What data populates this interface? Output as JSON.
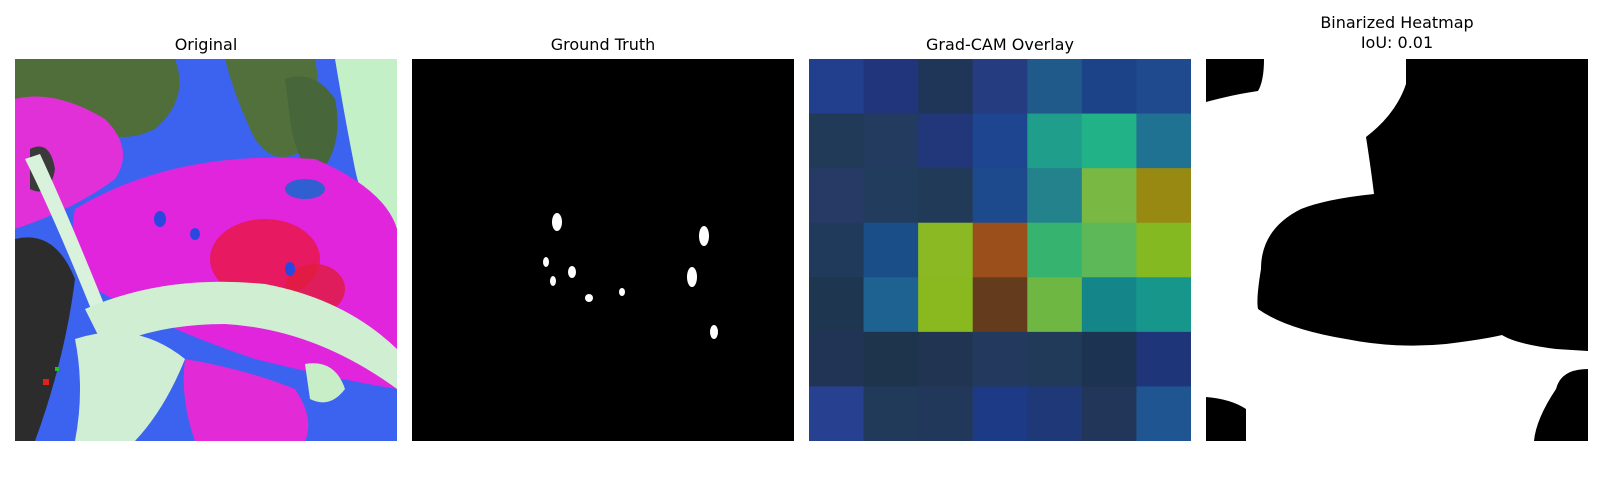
{
  "figure": {
    "panels": [
      {
        "title": "Original"
      },
      {
        "title": "Ground Truth"
      },
      {
        "title": "Grad-CAM Overlay"
      },
      {
        "title": "Binarized Heatmap",
        "subtitle": "IoU: 0.01"
      }
    ],
    "iou": 0.01
  },
  "gradcam_grid": {
    "rows": 7,
    "cols": 7,
    "colors": [
      [
        "#213f8c",
        "#20357c",
        "#203659",
        "#263c80",
        "#1f5a8b",
        "#1c4288",
        "#1f4a8d"
      ],
      [
        "#213a58",
        "#233b5e",
        "#22367a",
        "#1e4690",
        "#1f9e8c",
        "#22b287",
        "#1f7291"
      ],
      [
        "#273a66",
        "#223c5e",
        "#213a58",
        "#1c4a8d",
        "#23828b",
        "#78b843",
        "#978912"
      ],
      [
        "#203a5c",
        "#1a4e88",
        "#8ab923",
        "#9b4f1a",
        "#36b46f",
        "#5db957",
        "#85b922"
      ],
      [
        "#1e3650",
        "#1d6291",
        "#8ab91f",
        "#643c1d",
        "#6fb743",
        "#14868a",
        "#17978c"
      ],
      [
        "#223456",
        "#1e344d",
        "#213452",
        "#233a5e",
        "#223a5a",
        "#1c3452",
        "#1f357a"
      ],
      [
        "#27408f",
        "#223a5a",
        "#22385a",
        "#1c3a86",
        "#1f3878",
        "#213658",
        "#1f5692"
      ]
    ]
  },
  "icons": {
    "original": "flower-photo-icon",
    "ground_truth": "mask-icon",
    "binarized": "binary-mask-icon"
  }
}
